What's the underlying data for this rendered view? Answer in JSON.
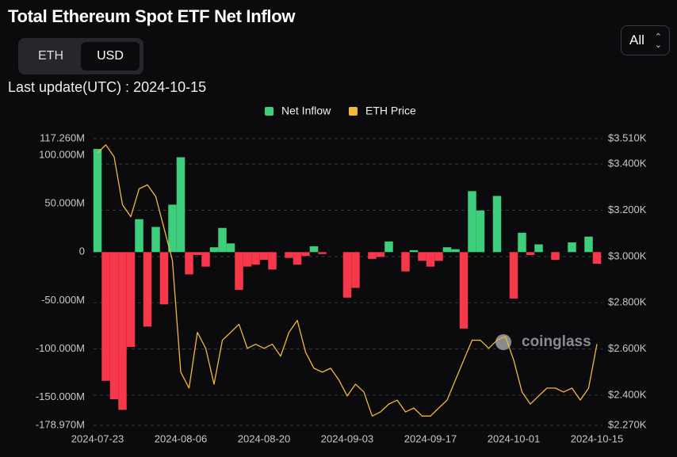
{
  "controls": {
    "toggle": [
      "ETH",
      "USD"
    ],
    "update_label": "Last update(UTC) : 2024-10-15",
    "range": "All",
    "watermark": "coinglass"
  },
  "chart_data": {
    "type": "bar",
    "title": "Total Ethereum Spot ETF Net Inflow",
    "categories": [
      "2024-07-23",
      null,
      null,
      null,
      null,
      null,
      null,
      null,
      null,
      null,
      "2024-08-06",
      null,
      null,
      null,
      null,
      null,
      null,
      null,
      null,
      null,
      "2024-08-20",
      null,
      null,
      null,
      null,
      null,
      null,
      null,
      null,
      null,
      "2024-09-03",
      null,
      null,
      null,
      null,
      null,
      null,
      null,
      null,
      null,
      "2024-09-17",
      null,
      null,
      null,
      null,
      null,
      null,
      null,
      null,
      null,
      "2024-10-01",
      null,
      null,
      null,
      null,
      null,
      null,
      null,
      null,
      null,
      "2024-10-15"
    ],
    "series": [
      {
        "name": "Net Inflow",
        "type": "bar",
        "positive_color": "#3ecf7c",
        "negative_color": "#f6384a",
        "values": [
          106.6,
          -133,
          -152,
          -163,
          -98,
          34,
          -77,
          26,
          -54,
          49,
          98,
          -23,
          -3,
          -15,
          5,
          25,
          9,
          -39,
          -15,
          -13,
          -8,
          -18,
          0,
          -6,
          -13,
          -4,
          6,
          -2,
          0,
          0,
          -47,
          -37,
          0,
          -7,
          -5,
          11,
          0,
          -20,
          2,
          -9,
          -15,
          -9,
          5,
          3,
          -79,
          63,
          43,
          0,
          58,
          0,
          -48,
          20,
          -3,
          8,
          0,
          -8,
          0,
          10,
          0,
          16,
          -12
        ]
      },
      {
        "name": "ETH Price",
        "type": "line",
        "axis": "y2",
        "color": "#f0b93a",
        "values": [
          3448,
          3483,
          3431,
          3224,
          3172,
          3293,
          3310,
          3259,
          3121,
          2983,
          2500,
          2431,
          2672,
          2603,
          2448,
          2638,
          2672,
          2707,
          2603,
          2621,
          2603,
          2621,
          2569,
          2672,
          2724,
          2586,
          2517,
          2500,
          2517,
          2466,
          2397,
          2448,
          2414,
          2310,
          2328,
          2362,
          2379,
          2328,
          2345,
          2310,
          2310,
          2345,
          2379,
          2466,
          2552,
          2638,
          2638,
          2603,
          2638,
          2655,
          2552,
          2414,
          2362,
          2397,
          2431,
          2431,
          2414,
          2431,
          2379,
          2431,
          2621
        ]
      }
    ],
    "ylim": [
      -178.97,
      117.26
    ],
    "yticks": [
      {
        "value": 117.26,
        "label": "117.260M"
      },
      {
        "value": 100,
        "label": "100.000M"
      },
      {
        "value": 50,
        "label": "50.000M"
      },
      0,
      {
        "value": -50,
        "label": "-50.000M"
      },
      {
        "value": -100,
        "label": "-100.000M"
      },
      {
        "value": -150,
        "label": "-150.000M"
      },
      {
        "value": -178.97,
        "label": "-178.970M"
      }
    ],
    "y2lim": [
      2270,
      3510
    ],
    "y2ticks": [
      {
        "value": 3510,
        "label": "$3.510K"
      },
      {
        "value": 3400,
        "label": "$3.400K"
      },
      {
        "value": 3200,
        "label": "$3.200K"
      },
      {
        "value": 3000,
        "label": "$3.000K"
      },
      {
        "value": 2800,
        "label": "$2.800K"
      },
      {
        "value": 2600,
        "label": "$2.600K"
      },
      {
        "value": 2400,
        "label": "$2.400K"
      },
      {
        "value": 2270,
        "label": "$2.270K"
      }
    ],
    "grid": true
  }
}
